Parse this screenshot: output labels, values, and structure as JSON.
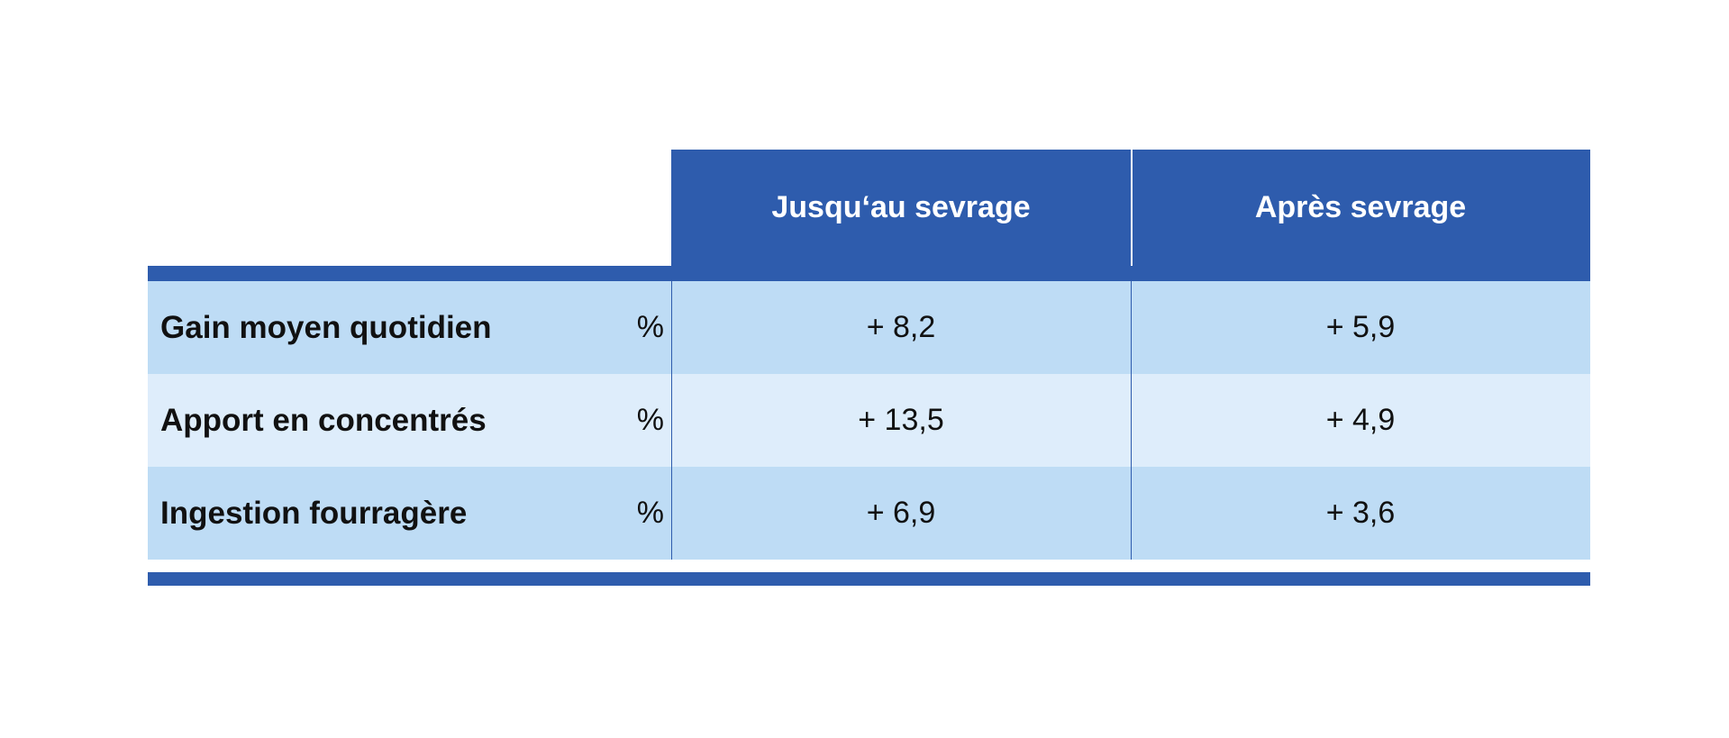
{
  "table": {
    "columns": [
      "Jusqu‘au sevrage",
      "Après sevrage"
    ],
    "rows": [
      {
        "label": "Gain moyen quotidien",
        "unit": "%",
        "values": [
          "+ 8,2",
          "+ 5,9"
        ]
      },
      {
        "label": "Apport en concentrés",
        "unit": "%",
        "values": [
          "+ 13,5",
          "+ 4,9"
        ]
      },
      {
        "label": "Ingestion fourragère",
        "unit": "%",
        "values": [
          "+ 6,9",
          "+ 3,6"
        ]
      }
    ]
  }
}
